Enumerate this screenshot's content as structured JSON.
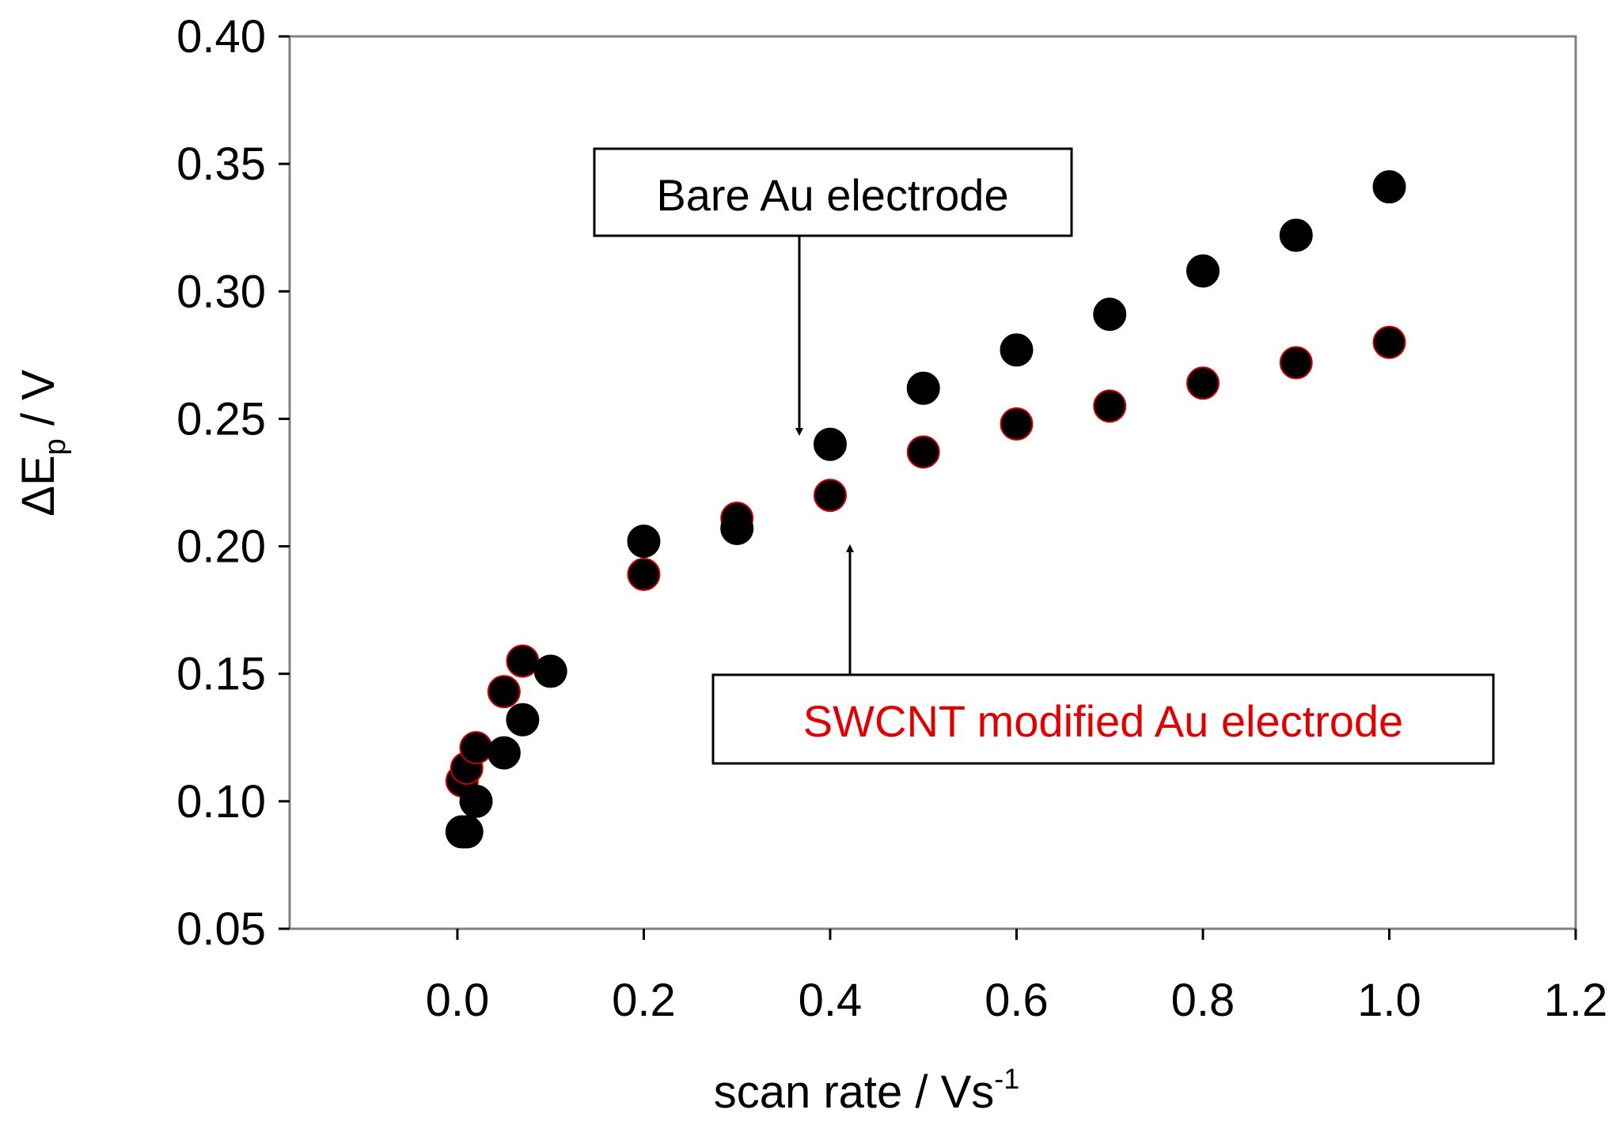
{
  "chart_data": {
    "type": "scatter",
    "title": "",
    "xlabel": "scan rate / Vs",
    "xlabel_superscript": "-1",
    "ylabel_main": "ΔE",
    "ylabel_sub": "p",
    "ylabel_unit": " / V",
    "xlim": [
      -0.18,
      1.2
    ],
    "ylim": [
      0.05,
      0.4
    ],
    "xticks": [
      0.0,
      0.2,
      0.4,
      0.6,
      0.8,
      1.0,
      1.2
    ],
    "xtick_labels": [
      "0.0",
      "0.2",
      "0.4",
      "0.6",
      "0.8",
      "1.0",
      "1.2"
    ],
    "yticks": [
      0.05,
      0.1,
      0.15,
      0.2,
      0.25,
      0.3,
      0.35,
      0.4
    ],
    "ytick_labels": [
      "0.05",
      "0.10",
      "0.15",
      "0.20",
      "0.25",
      "0.30",
      "0.35",
      "0.40"
    ],
    "grid": false,
    "series": [
      {
        "name": "SWCNT modified Au electrode",
        "color": "#000000",
        "edge_color": "#cc0000",
        "x": [
          0.005,
          0.01,
          0.02,
          0.05,
          0.07,
          0.2,
          0.3,
          0.4,
          0.5,
          0.6,
          0.7,
          0.8,
          0.9,
          1.0
        ],
        "y": [
          0.108,
          0.113,
          0.121,
          0.143,
          0.155,
          0.189,
          0.211,
          0.22,
          0.237,
          0.248,
          0.255,
          0.264,
          0.272,
          0.28
        ]
      },
      {
        "name": "Bare Au electrode",
        "color": "#000000",
        "edge_color": "#000000",
        "x": [
          0.005,
          0.01,
          0.02,
          0.05,
          0.07,
          0.1,
          0.2,
          0.3,
          0.4,
          0.5,
          0.6,
          0.7,
          0.8,
          0.9,
          1.0
        ],
        "y": [
          0.088,
          0.088,
          0.1,
          0.119,
          0.132,
          0.151,
          0.202,
          0.207,
          0.24,
          0.262,
          0.277,
          0.291,
          0.308,
          0.322,
          0.341
        ]
      }
    ],
    "annotations": [
      {
        "text": "Bare Au electrode",
        "color": "#000000",
        "target_x": 0.365,
        "target_y": 0.241
      },
      {
        "text": "SWCNT modified Au electrode",
        "color": "#e00000",
        "target_x": 0.42,
        "target_y": 0.203
      }
    ]
  }
}
